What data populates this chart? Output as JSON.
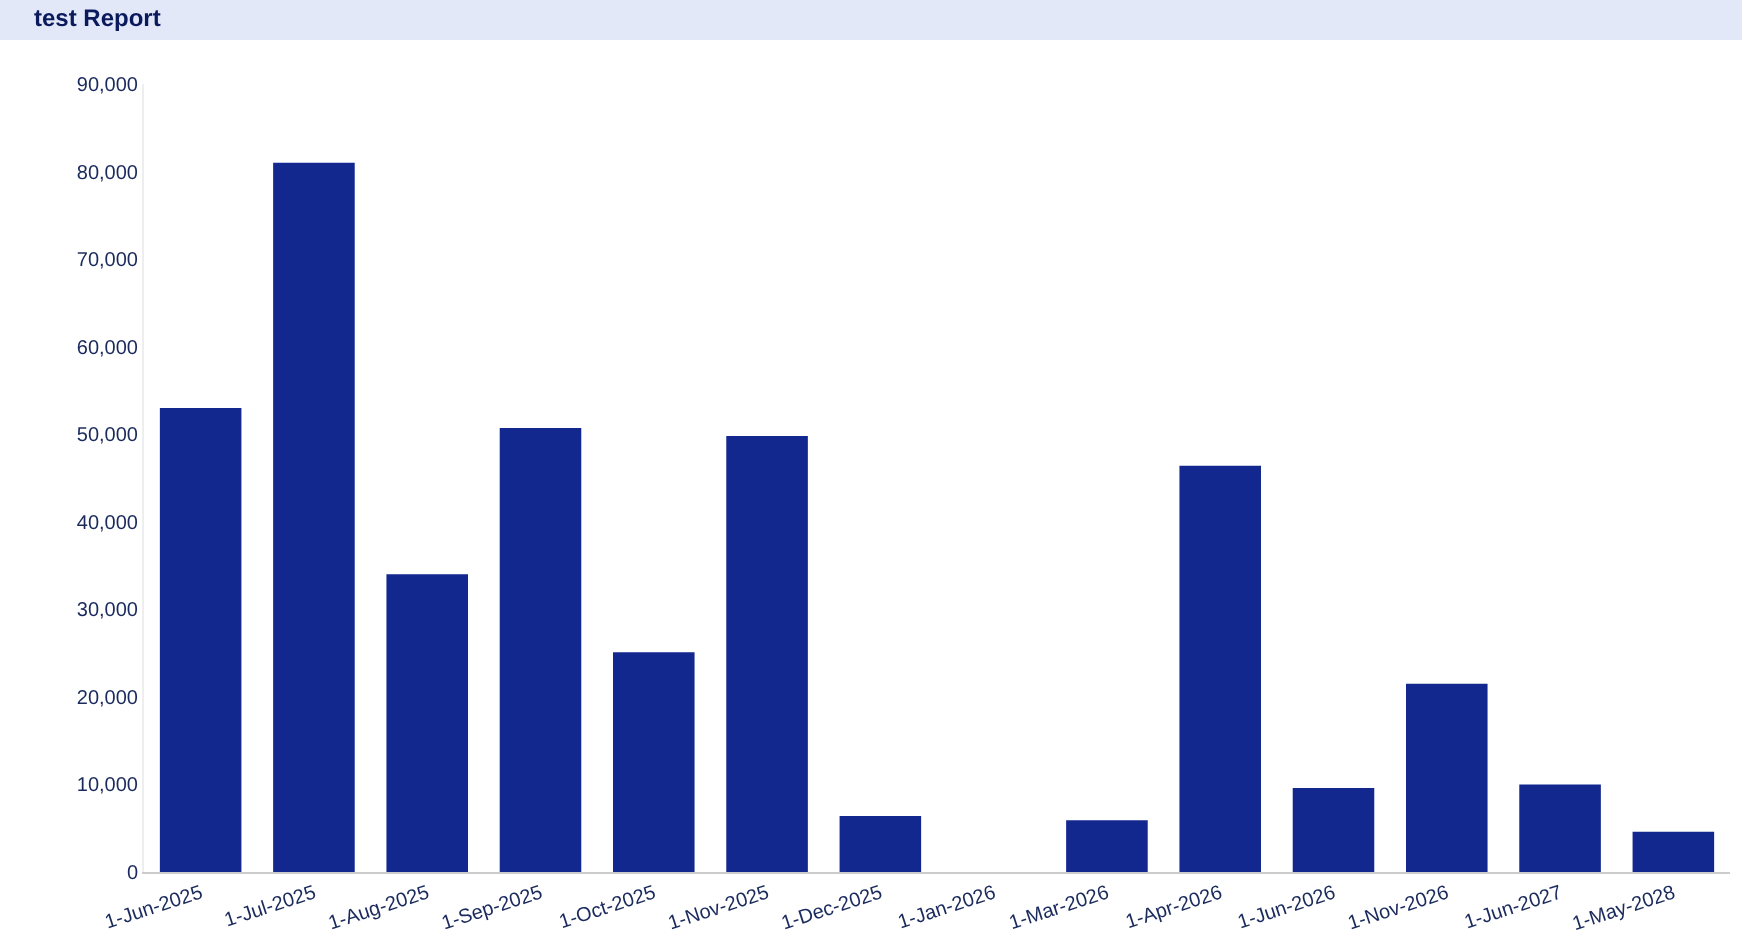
{
  "chart_data": {
    "type": "bar",
    "title": "test Report",
    "categories": [
      "1-Jun-2025",
      "1-Jul-2025",
      "1-Aug-2025",
      "1-Sep-2025",
      "1-Oct-2025",
      "1-Nov-2025",
      "1-Dec-2025",
      "1-Jan-2026",
      "1-Mar-2026",
      "1-Apr-2026",
      "1-Jun-2026",
      "1-Nov-2026",
      "1-Jun-2027",
      "1-May-2028"
    ],
    "values": [
      53000,
      81000,
      34000,
      50700,
      25100,
      49800,
      6400,
      0,
      5900,
      46400,
      9600,
      21500,
      10000,
      4600
    ],
    "color": "#13288f",
    "ylim": [
      0,
      90000
    ],
    "yticks": [
      {
        "value": 0,
        "label": "0"
      },
      {
        "value": 10000,
        "label": "10,000"
      },
      {
        "value": 20000,
        "label": "20,000"
      },
      {
        "value": 30000,
        "label": "30,000"
      },
      {
        "value": 40000,
        "label": "40,000"
      },
      {
        "value": 50000,
        "label": "50,000"
      },
      {
        "value": 60000,
        "label": "60,000"
      },
      {
        "value": 70000,
        "label": "70,000"
      },
      {
        "value": 80000,
        "label": "80,000"
      },
      {
        "value": 90000,
        "label": "90,000"
      }
    ],
    "grid": false
  }
}
